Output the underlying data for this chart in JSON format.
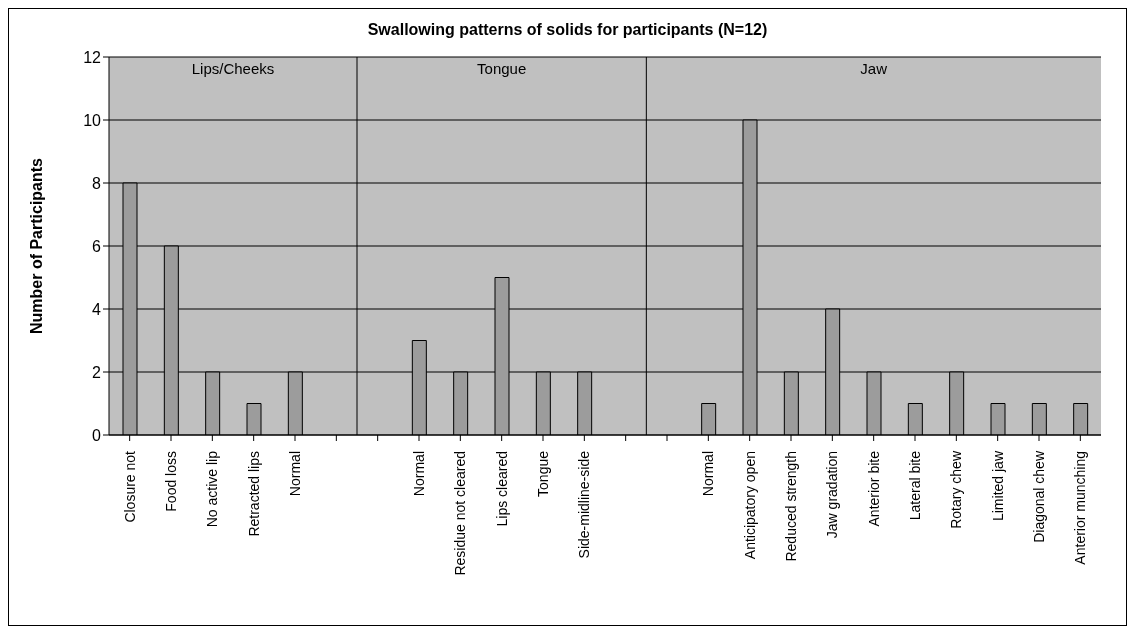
{
  "chart_data": {
    "type": "bar",
    "title": "Swallowing patterns of solids for participants (N=12)",
    "ylabel": "Number of Participants",
    "categories": [
      "Closure not",
      "Food loss",
      "No active lip",
      "Retracted lips",
      "Normal",
      null,
      null,
      "Normal",
      "Residue not cleared",
      "Lips cleared",
      "Tongue",
      "Side-midline-side",
      null,
      null,
      "Normal",
      "Anticipatory open",
      "Reduced strength",
      "Jaw gradation",
      "Anterior bite",
      "Lateral bite",
      "Rotary chew",
      "Limited jaw",
      "Diagonal chew",
      "Anterior munching"
    ],
    "values": [
      8,
      6,
      2,
      1,
      2,
      null,
      null,
      3,
      2,
      5,
      2,
      2,
      null,
      null,
      1,
      10,
      2,
      4,
      2,
      1,
      2,
      1,
      1,
      1
    ],
    "color": "#9c9c9c",
    "annotations": [
      "Lips/Cheeks",
      "Tongue",
      "Jaw"
    ],
    "ylim": [
      0,
      12
    ],
    "yticks": [
      0,
      2,
      4,
      6,
      8,
      10,
      12
    ],
    "grid": "y"
  }
}
